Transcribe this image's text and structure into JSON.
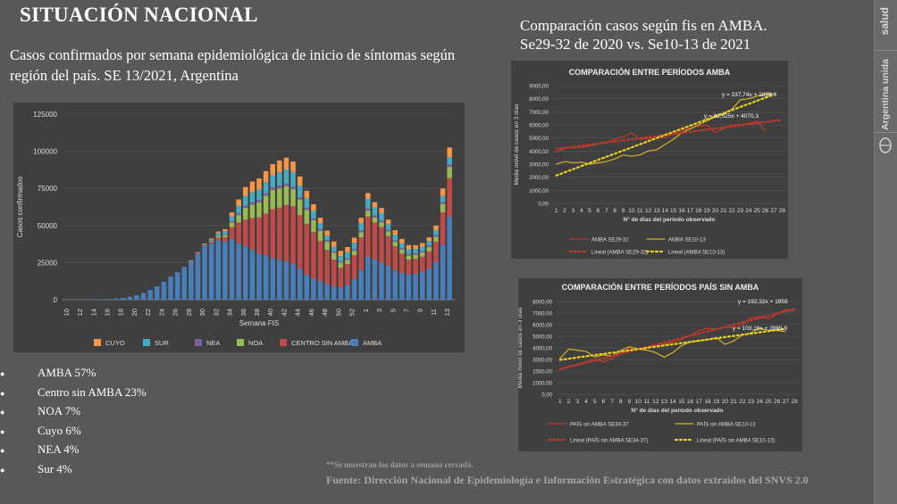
{
  "page": {
    "title": "SITUACIÓN NACIONAL",
    "subtitle": "Casos confirmados por semana epidemiológica de inicio de síntomas según región del país. SE 13/2021, Argentina",
    "right_title": "Comparación casos según fis en AMBA. Se29-32 de 2020 vs. Se10-13 de 2021",
    "note": "**Se muestran los datos a semana cerrada.",
    "source": "Fuente: Dirección Nacional de Epidemiología e Información Estratégica con datos extraídos del SNVS 2.0",
    "side_label_1": "salud",
    "side_label_2": "Argentina unida",
    "bullets": [
      "AMBA 57%",
      "Centro sin AMBA 23%",
      "NOA 7%",
      "Cuyo 6%",
      "NEA 4%",
      "Sur 4%"
    ]
  },
  "colors": {
    "background": "#585858",
    "AMBA": "#4a7ebb",
    "CENTRO SIN AMBA": "#be4b48",
    "NOA": "#98b954",
    "NEA": "#7d60a0",
    "SUR": "#46aac5",
    "CUYO": "#f79646",
    "line_red": "#c0392b",
    "line_yellow": "#d4b426",
    "trend_red": "#c0392b",
    "trend_yellow": "#e8d21d"
  },
  "chart_data": [
    {
      "type": "bar",
      "stacked": true,
      "xlabel": "Semana FIS",
      "ylabel": "Casos confirmados",
      "ylim": [
        0,
        125000
      ],
      "yticks": [
        "0",
        "25000",
        "50000",
        "75000",
        "100000",
        "125000"
      ],
      "categories": [
        "10",
        "11",
        "12",
        "13",
        "14",
        "15",
        "16",
        "17",
        "18",
        "19",
        "20",
        "21",
        "22",
        "23",
        "24",
        "25",
        "26",
        "27",
        "28",
        "29",
        "30",
        "31",
        "32",
        "33",
        "34",
        "35",
        "36",
        "37",
        "38",
        "39",
        "40",
        "41",
        "42",
        "43",
        "44",
        "45",
        "46",
        "47",
        "48",
        "49",
        "50",
        "51",
        "52",
        "53",
        "1",
        "2",
        "3",
        "4",
        "5",
        "6",
        "7",
        "8",
        "9",
        "10",
        "11",
        "12",
        "13"
      ],
      "xtick_labels": [
        "10",
        "12",
        "14",
        "16",
        "18",
        "20",
        "22",
        "24",
        "26",
        "28",
        "30",
        "32",
        "34",
        "36",
        "38",
        "40",
        "42",
        "44",
        "46",
        "48",
        "50",
        "52",
        "1",
        "3",
        "5",
        "7",
        "9",
        "11",
        "13"
      ],
      "legend": [
        "CUYO",
        "SUR",
        "NEA",
        "NOA",
        "CENTRO SIN AMBA",
        "AMBA"
      ],
      "series": [
        {
          "name": "AMBA",
          "values": [
            50,
            80,
            120,
            180,
            250,
            350,
            500,
            800,
            1200,
            2000,
            3000,
            4500,
            6500,
            9000,
            12000,
            15500,
            18500,
            22000,
            26000,
            31000,
            36000,
            38000,
            40000,
            39000,
            41000,
            38000,
            36000,
            34000,
            31000,
            30000,
            28000,
            27000,
            26000,
            24000,
            21000,
            17000,
            14500,
            12500,
            10500,
            9000,
            8500,
            10000,
            14000,
            20000,
            29000,
            27000,
            25000,
            23000,
            20000,
            18000,
            17000,
            17500,
            19000,
            21000,
            25500,
            37000,
            56000
          ]
        },
        {
          "name": "CENTRO SIN AMBA",
          "values": [
            0,
            0,
            0,
            0,
            0,
            0,
            0,
            0,
            0,
            0,
            0,
            0,
            0,
            0,
            0,
            0,
            0,
            100,
            200,
            300,
            500,
            1000,
            1800,
            3000,
            8000,
            14000,
            18000,
            21000,
            24500,
            28000,
            33000,
            35000,
            38000,
            39000,
            36000,
            34000,
            31000,
            27000,
            23000,
            18000,
            13000,
            14000,
            16000,
            22000,
            27000,
            25000,
            24000,
            20000,
            16000,
            13000,
            10000,
            10000,
            10000,
            11500,
            13500,
            22000,
            26000
          ]
        },
        {
          "name": "NOA",
          "values": [
            0,
            0,
            0,
            0,
            0,
            0,
            0,
            0,
            0,
            0,
            0,
            0,
            0,
            0,
            0,
            0,
            0,
            0,
            100,
            200,
            400,
            800,
            1200,
            1600,
            3000,
            5000,
            8000,
            9000,
            10000,
            12000,
            13000,
            13000,
            12500,
            11500,
            10500,
            9500,
            8000,
            7000,
            5500,
            4500,
            3500,
            3000,
            3000,
            3500,
            4000,
            3500,
            3200,
            3000,
            3000,
            2800,
            2800,
            2800,
            2800,
            3000,
            3500,
            5500,
            7500
          ]
        },
        {
          "name": "NEA",
          "values": [
            0,
            0,
            0,
            0,
            0,
            0,
            0,
            0,
            0,
            0,
            0,
            0,
            0,
            0,
            0,
            0,
            0,
            0,
            0,
            100,
            200,
            300,
            400,
            500,
            800,
            1100,
            1400,
            1600,
            1700,
            1700,
            1800,
            1800,
            1700,
            1600,
            1500,
            1400,
            1300,
            1200,
            1100,
            1000,
            900,
            1000,
            1100,
            1200,
            1400,
            1200,
            1100,
            1000,
            1000,
            900,
            900,
            900,
            900,
            1000,
            1100,
            1400,
            1900
          ]
        },
        {
          "name": "SUR",
          "values": [
            0,
            0,
            0,
            0,
            0,
            0,
            0,
            0,
            0,
            0,
            0,
            0,
            0,
            0,
            0,
            0,
            0,
            0,
            100,
            300,
            500,
            700,
            1500,
            2000,
            3500,
            5000,
            6500,
            7000,
            7000,
            7500,
            8000,
            9000,
            9500,
            10000,
            8000,
            6500,
            5000,
            4000,
            3000,
            3200,
            3500,
            4000,
            4200,
            5000,
            6500,
            5500,
            5000,
            4000,
            3800,
            3500,
            3300,
            3000,
            3000,
            3000,
            3300,
            4000,
            4600
          ]
        },
        {
          "name": "CUYO",
          "values": [
            0,
            0,
            0,
            0,
            0,
            0,
            0,
            0,
            0,
            0,
            0,
            0,
            0,
            0,
            0,
            0,
            0,
            0,
            100,
            200,
            300,
            500,
            1000,
            1500,
            2500,
            4500,
            6000,
            7000,
            7500,
            7500,
            7500,
            8000,
            8000,
            7000,
            6000,
            5000,
            4500,
            3500,
            3500,
            3500,
            3500,
            3500,
            3500,
            3500,
            4000,
            3500,
            3500,
            3000,
            3000,
            2800,
            2800,
            2500,
            2500,
            2500,
            3000,
            5000,
            6500
          ]
        }
      ]
    },
    {
      "type": "line",
      "title": "COMPARACIÓN ENTRE PERÍODOS AMBA",
      "xlabel": "N° de días del período observado",
      "ylabel": "Media móvil de casos en 3 días",
      "ylim": [
        0,
        9000
      ],
      "yticks": [
        "0,00",
        "1000,00",
        "2000,00",
        "3000,00",
        "4000,00",
        "5000,00",
        "6000,00",
        "7000,00",
        "8000,00",
        "9000,00"
      ],
      "x": [
        1,
        2,
        3,
        4,
        5,
        6,
        7,
        8,
        9,
        10,
        11,
        12,
        13,
        14,
        15,
        16,
        17,
        18,
        19,
        20,
        21,
        22,
        23,
        24,
        25,
        26,
        27,
        28
      ],
      "annotations": [
        "y = 237,74x + 1898,4",
        "y = 82,525x + 4070,3"
      ],
      "series": [
        {
          "name": "AMBA SE29-32",
          "style": "solid-red",
          "values": [
            3900,
            4200,
            4250,
            4300,
            4400,
            4550,
            4650,
            4900,
            5100,
            5400,
            4900,
            4950,
            5000,
            5050,
            5300,
            5600,
            5750,
            5900,
            6000,
            5400,
            5700,
            6000,
            6000,
            6100,
            6300,
            5500,
            null,
            null
          ]
        },
        {
          "name": "AMBA SE10-13",
          "style": "solid-yellow",
          "values": [
            3000,
            3200,
            3100,
            3150,
            3000,
            3100,
            3200,
            3400,
            3700,
            3600,
            3700,
            4000,
            4100,
            4500,
            4900,
            5400,
            5700,
            6000,
            6300,
            6600,
            6800,
            7200,
            7900,
            8000,
            8200,
            8350,
            8400,
            null
          ]
        },
        {
          "name": "Lineal (AMBA SE29-32)",
          "style": "dotted-red",
          "values": [
            4153,
            4235,
            4318,
            4400,
            4483,
            4565,
            4648,
            4730,
            4813,
            4896,
            4978,
            5061,
            5143,
            5226,
            5308,
            5391,
            5473,
            5556,
            5638,
            5721,
            5803,
            5886,
            5968,
            6051,
            6133,
            6216,
            6298,
            6381
          ]
        },
        {
          "name": "Lineal (AMBA SE10-13)",
          "style": "dotted-yellow",
          "values": [
            2136,
            2374,
            2612,
            2849,
            3087,
            3325,
            3563,
            3800,
            4038,
            4276,
            4514,
            4751,
            4989,
            5227,
            5465,
            5702,
            5940,
            6178,
            6416,
            6653,
            6891,
            7129,
            7367,
            7604,
            7842,
            8080,
            8317,
            null
          ]
        }
      ]
    },
    {
      "type": "line",
      "title": "COMPARACIÓN ENTRE PERÍODOS PAÍS SIN AMBA",
      "xlabel": "N° de días del período observado",
      "ylabel": "Media móvil de casos en 3 días",
      "ylim": [
        0,
        8000
      ],
      "yticks": [
        "0,00",
        "1000,00",
        "2000,00",
        "3000,00",
        "4000,00",
        "5000,00",
        "6000,00",
        "7000,00",
        "8000,00"
      ],
      "x": [
        1,
        2,
        3,
        4,
        5,
        6,
        7,
        8,
        9,
        10,
        11,
        12,
        13,
        14,
        15,
        16,
        17,
        18,
        19,
        20,
        21,
        22,
        23,
        24,
        25,
        26,
        27,
        28
      ],
      "annotations": [
        "y = 192,32x + 1959",
        "y = 103,16x + 2865,9"
      ],
      "series": [
        {
          "name": "PAÍS sin AMBA SE34-37",
          "style": "solid-red",
          "values": [
            2200,
            2400,
            2600,
            2800,
            3000,
            2800,
            3100,
            3500,
            4000,
            3900,
            4100,
            4200,
            4300,
            4500,
            4700,
            5100,
            5500,
            5700,
            5600,
            5800,
            5700,
            6000,
            6600,
            6700,
            6500,
            6900,
            7300,
            7200
          ]
        },
        {
          "name": "PAÍS sin AMBA SE10-13",
          "style": "solid-yellow",
          "values": [
            3100,
            3900,
            3800,
            3700,
            3200,
            3400,
            3300,
            3800,
            4100,
            3900,
            3800,
            3600,
            3200,
            3600,
            4200,
            4500,
            4600,
            4700,
            4900,
            4300,
            4600,
            5100,
            5300,
            5700,
            5500,
            5500,
            5400,
            null
          ]
        },
        {
          "name": "Lineal (PAÍS sin AMBA SE34-37)",
          "style": "dotted-red",
          "values": [
            2151,
            2344,
            2536,
            2728,
            2921,
            3113,
            3305,
            3498,
            3690,
            3882,
            4075,
            4267,
            4459,
            4651,
            4844,
            5036,
            5228,
            5421,
            5613,
            5805,
            5998,
            6190,
            6382,
            6575,
            6767,
            6959,
            7152,
            7344
          ]
        },
        {
          "name": "Lineal (PAÍS sin AMBA SE10-13)",
          "style": "dotted-yellow",
          "values": [
            2969,
            3072,
            3175,
            3279,
            3382,
            3485,
            3588,
            3691,
            3794,
            3898,
            4001,
            4104,
            4207,
            4310,
            4413,
            4516,
            4620,
            4723,
            4826,
            4929,
            5032,
            5135,
            5239,
            5342,
            5445,
            5548,
            5651,
            null
          ]
        }
      ]
    }
  ]
}
